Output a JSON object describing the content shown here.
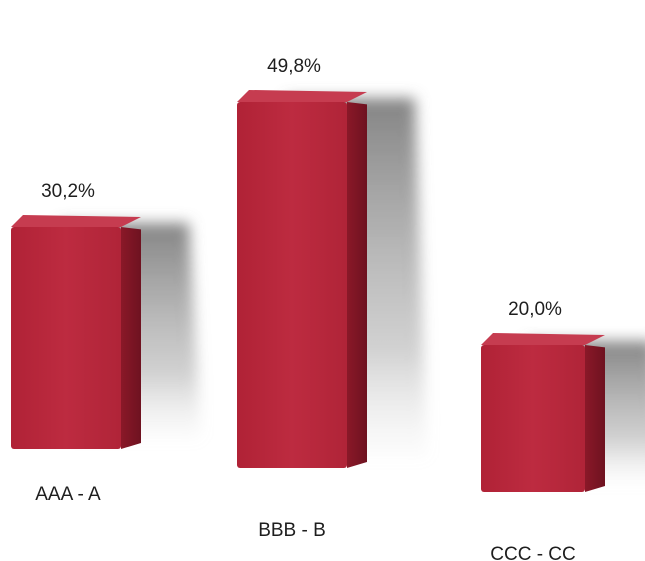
{
  "chart_data": {
    "type": "bar",
    "title": "",
    "xlabel": "",
    "ylabel": "",
    "categories": [
      "AAA - A",
      "BBB - B",
      "CCC - CC"
    ],
    "values": [
      30.2,
      49.8,
      20.0
    ],
    "value_labels": [
      "30,2%",
      "49,8%",
      "20,0%"
    ],
    "unit": "%",
    "ylim": [
      0,
      50
    ],
    "grid": false,
    "legend": "none",
    "style": "3d",
    "colors": {
      "front": "#b8283c",
      "side": "#8e1a2a",
      "top": "#c63c50",
      "shadow": "#7a7a7a"
    }
  }
}
